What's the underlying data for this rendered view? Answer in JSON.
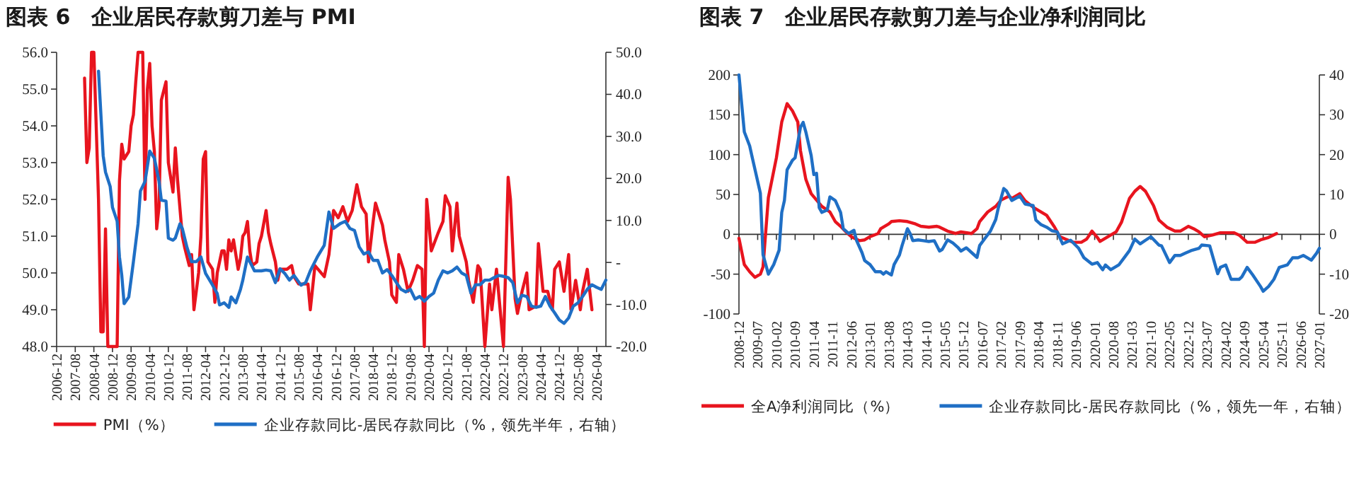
{
  "chart_data": [
    {
      "type": "line",
      "title": "图表 6　企业居民存款剪刀差与 PMI",
      "legend": "bottom",
      "xlim": [
        "2006-12",
        "2026-08"
      ],
      "xticks": [
        "2006-12",
        "2007-08",
        "2008-04",
        "2008-12",
        "2009-08",
        "2010-04",
        "2010-12",
        "2011-08",
        "2012-04",
        "2012-12",
        "2013-08",
        "2014-04",
        "2014-12",
        "2015-08",
        "2016-04",
        "2016-12",
        "2017-08",
        "2018-04",
        "2018-12",
        "2019-08",
        "2020-04",
        "2020-12",
        "2021-08",
        "2022-04",
        "2022-12",
        "2023-08",
        "2024-04",
        "2024-12",
        "2025-08",
        "2026-04"
      ],
      "ylim": [
        48,
        56
      ],
      "yticks": [
        {
          "value": 48,
          "label": "48.0"
        },
        {
          "value": 49,
          "label": "49.0"
        },
        {
          "value": 50,
          "label": "50.0"
        },
        {
          "value": 51,
          "label": "51.0"
        },
        {
          "value": 52,
          "label": "52.0"
        },
        {
          "value": 53,
          "label": "53.0"
        },
        {
          "value": 54,
          "label": "54.0"
        },
        {
          "value": 55,
          "label": "55.0"
        },
        {
          "value": 56,
          "label": "56.0"
        }
      ],
      "y2lim": [
        -20,
        50
      ],
      "y2ticks": [
        {
          "value": -20,
          "label": "-20.0"
        },
        {
          "value": -10,
          "label": "-10.0"
        },
        {
          "value": 0,
          "label": "-"
        },
        {
          "value": 10,
          "label": "10.0"
        },
        {
          "value": 20,
          "label": "20.0"
        },
        {
          "value": 30,
          "label": "30.0"
        },
        {
          "value": 40,
          "label": "40.0"
        },
        {
          "value": 50,
          "label": "50.0"
        }
      ],
      "series": [
        {
          "name": "PMI（%）",
          "color": "#e8141e",
          "x": [
            "2007-12",
            "2008-01",
            "2008-02",
            "2008-03",
            "2008-04",
            "2008-05",
            "2008-06",
            "2008-07",
            "2008-08",
            "2008-09",
            "2008-10",
            "2009-02",
            "2009-03",
            "2009-04",
            "2009-05",
            "2009-07",
            "2009-08",
            "2009-09",
            "2009-10",
            "2009-11",
            "2010-01",
            "2010-02",
            "2010-03",
            "2010-04",
            "2010-05",
            "2010-06",
            "2010-07",
            "2010-08",
            "2010-09",
            "2010-11",
            "2010-12",
            "2011-02",
            "2011-03",
            "2011-04",
            "2011-06",
            "2011-07",
            "2011-09",
            "2011-10",
            "2011-11",
            "2012-01",
            "2012-02",
            "2012-03",
            "2012-04",
            "2012-05",
            "2012-07",
            "2012-08",
            "2012-09",
            "2012-11",
            "2012-12",
            "2013-01",
            "2013-02",
            "2013-03",
            "2013-04",
            "2013-06",
            "2013-07",
            "2013-08",
            "2013-09",
            "2013-10",
            "2013-11",
            "2013-12",
            "2014-02",
            "2014-03",
            "2014-04",
            "2014-06",
            "2014-07",
            "2014-08",
            "2014-10",
            "2014-11",
            "2014-12",
            "2015-03",
            "2015-05",
            "2015-06",
            "2015-08",
            "2015-12",
            "2016-01",
            "2016-03",
            "2016-07",
            "2016-09",
            "2016-11",
            "2017-01",
            "2017-03",
            "2017-05",
            "2017-07",
            "2017-09",
            "2017-11",
            "2018-01",
            "2018-02",
            "2018-04",
            "2018-05",
            "2018-08",
            "2018-09",
            "2018-11",
            "2018-12",
            "2019-02",
            "2019-03",
            "2019-05",
            "2019-07",
            "2019-09",
            "2019-11",
            "2020-01",
            "2020-02",
            "2020-03",
            "2020-05",
            "2020-08",
            "2020-10",
            "2020-11",
            "2021-01",
            "2021-02",
            "2021-04",
            "2021-05",
            "2021-08",
            "2021-09",
            "2021-11",
            "2022-01",
            "2022-02",
            "2022-04",
            "2022-06",
            "2022-07",
            "2022-09",
            "2022-10",
            "2022-12",
            "2023-02",
            "2023-03",
            "2023-05",
            "2023-06",
            "2023-08",
            "2023-10",
            "2023-11",
            "2024-02",
            "2024-03",
            "2024-05",
            "2024-07",
            "2024-09",
            "2024-10",
            "2024-12",
            "2025-02",
            "2025-04",
            "2025-05",
            "2025-07",
            "2025-09",
            "2025-10",
            "2025-12",
            "2026-02"
          ],
          "values": [
            55.3,
            53.0,
            53.4,
            56.0,
            56.0,
            54.0,
            52.0,
            48.4,
            48.4,
            51.2,
            48.0,
            48.0,
            52.5,
            53.5,
            53.1,
            53.3,
            54.0,
            54.3,
            55.2,
            56.0,
            56.0,
            52.0,
            55.0,
            55.7,
            54.0,
            53.3,
            51.2,
            51.8,
            54.7,
            55.2,
            53.0,
            52.2,
            53.4,
            52.5,
            51.0,
            50.7,
            50.2,
            50.5,
            49.0,
            50.0,
            51.0,
            53.1,
            53.3,
            50.3,
            50.1,
            49.2,
            50.0,
            50.6,
            50.6,
            50.1,
            50.9,
            50.6,
            50.9,
            50.1,
            50.4,
            51.0,
            51.1,
            51.4,
            50.6,
            50.2,
            50.3,
            50.8,
            51.0,
            51.7,
            51.1,
            50.8,
            50.3,
            49.8,
            50.1,
            50.1,
            50.2,
            49.9,
            49.7,
            49.7,
            49.0,
            50.2,
            49.9,
            50.5,
            51.7,
            51.5,
            51.8,
            51.4,
            51.7,
            52.4,
            51.8,
            51.6,
            50.3,
            51.4,
            51.9,
            51.3,
            50.9,
            50.3,
            49.4,
            49.2,
            50.5,
            50.1,
            49.5,
            49.8,
            50.2,
            50.1,
            48.0,
            52.0,
            50.6,
            51.1,
            51.4,
            52.1,
            51.8,
            50.6,
            51.9,
            51.0,
            50.3,
            49.8,
            49.2,
            50.2,
            50.1,
            48.0,
            49.7,
            49.0,
            50.1,
            49.4,
            48.0,
            52.6,
            52.0,
            49.3,
            48.9,
            49.5,
            50.0,
            49.0,
            49.1,
            50.8,
            49.5,
            49.5,
            49.0,
            50.1,
            50.3,
            49.5,
            50.5,
            49.0,
            49.8,
            49.0,
            49.5,
            50.1,
            49.0
          ]
        },
        {
          "name": "企业存款同比-居民存款同比（%，领先半年，右轴）",
          "color": "#1f6fc5",
          "axis": "y2",
          "x": [
            "2008-06",
            "2008-08",
            "2008-09",
            "2008-11",
            "2008-12",
            "2009-02",
            "2009-03",
            "2009-04",
            "2009-05",
            "2009-07",
            "2009-09",
            "2009-11",
            "2009-12",
            "2010-02",
            "2010-04",
            "2010-06",
            "2010-08",
            "2010-09",
            "2010-11",
            "2010-12",
            "2011-02",
            "2011-03",
            "2011-05",
            "2011-06",
            "2011-08",
            "2011-10",
            "2011-12",
            "2012-02",
            "2012-04",
            "2012-07",
            "2012-09",
            "2012-10",
            "2012-12",
            "2013-02",
            "2013-03",
            "2013-05",
            "2013-07",
            "2013-08",
            "2013-10",
            "2013-12",
            "2014-01",
            "2014-04",
            "2014-06",
            "2014-08",
            "2014-10",
            "2014-12",
            "2015-02",
            "2015-04",
            "2015-06",
            "2015-09",
            "2015-11",
            "2016-01",
            "2016-04",
            "2016-07",
            "2016-09",
            "2016-11",
            "2017-02",
            "2017-04",
            "2017-06",
            "2017-08",
            "2017-10",
            "2017-12",
            "2018-02",
            "2018-04",
            "2018-06",
            "2018-08",
            "2018-10",
            "2018-12",
            "2019-02",
            "2019-04",
            "2019-06",
            "2019-08",
            "2019-10",
            "2019-12",
            "2020-02",
            "2020-04",
            "2020-06",
            "2020-08",
            "2020-10",
            "2020-12",
            "2021-02",
            "2021-04",
            "2021-06",
            "2021-08",
            "2021-10",
            "2021-12",
            "2022-02",
            "2022-04",
            "2022-06",
            "2022-08",
            "2022-10",
            "2022-12",
            "2023-02",
            "2023-04",
            "2023-06",
            "2023-08",
            "2023-10",
            "2023-12",
            "2024-02",
            "2024-04",
            "2024-06",
            "2024-08",
            "2024-10",
            "2024-12",
            "2025-02",
            "2025-04",
            "2025-06",
            "2025-08",
            "2025-10",
            "2025-12",
            "2026-02",
            "2026-04",
            "2026-06",
            "2026-08"
          ],
          "values": [
            45.5,
            25.4,
            21.5,
            18.1,
            13.1,
            9.8,
            1.3,
            -3.1,
            -9.8,
            -8.2,
            0.2,
            9.2,
            17.0,
            19.3,
            26.5,
            24.8,
            19.3,
            14.8,
            14.6,
            5.8,
            5.3,
            5.8,
            9.2,
            8.1,
            3.6,
            0.2,
            0.2,
            1.3,
            -2.6,
            -5.4,
            -7.4,
            -10.1,
            -9.6,
            -10.7,
            -8.2,
            -9.6,
            -6.4,
            -4.2,
            1.3,
            -0.9,
            -2.0,
            -2.0,
            -1.8,
            -2.0,
            -4.8,
            -1.5,
            -2.6,
            -4.2,
            -3.1,
            -5.4,
            -4.8,
            -2.0,
            1.3,
            4.1,
            12.0,
            8.1,
            9.3,
            9.8,
            8.1,
            7.6,
            3.7,
            2.0,
            2.5,
            0.5,
            0.5,
            -2.5,
            -1.7,
            -3.1,
            -4.8,
            -6.4,
            -7.0,
            -6.4,
            -8.7,
            -8.1,
            -9.2,
            -8.1,
            -7.3,
            -4.2,
            -2.0,
            -2.5,
            -2.0,
            -1.1,
            -2.5,
            -3.1,
            -7.3,
            -5.3,
            -5.3,
            -4.2,
            -4.2,
            -3.6,
            -3.1,
            -3.3,
            -3.6,
            -4.8,
            -9.6,
            -7.8,
            -8.1,
            -10.4,
            -10.7,
            -10.4,
            -8.1,
            -10.4,
            -12.0,
            -13.7,
            -14.5,
            -13.2,
            -10.4,
            -9.6,
            -8.1,
            -6.4,
            -5.3,
            -5.9,
            -6.4,
            -4.2
          ]
        }
      ]
    },
    {
      "type": "line",
      "title": "图表 7　企业居民存款剪刀差与企业净利润同比",
      "legend": "bottom",
      "xlim": [
        "2008-12",
        "2027-01"
      ],
      "xticks": [
        "2008-12",
        "2009-07",
        "2010-02",
        "2010-09",
        "2011-04",
        "2011-11",
        "2012-06",
        "2013-01",
        "2013-08",
        "2014-03",
        "2014-10",
        "2015-05",
        "2015-12",
        "2016-07",
        "2017-02",
        "2017-09",
        "2018-04",
        "2018-11",
        "2019-06",
        "2020-01",
        "2020-08",
        "2021-03",
        "2021-10",
        "2022-05",
        "2022-12",
        "2023-07",
        "2024-02",
        "2024-09",
        "2025-04",
        "2025-11",
        "2026-06",
        "2027-01"
      ],
      "ylim": [
        -100,
        200
      ],
      "yticks": [
        -100,
        -50,
        0,
        50,
        100,
        150,
        200
      ],
      "y2lim": [
        -20,
        40
      ],
      "y2ticks": [
        -20,
        -10,
        0,
        10,
        20,
        30,
        40
      ],
      "series": [
        {
          "name": "全A净利润同比（%）",
          "color": "#e8141e",
          "x": [
            "2008-12",
            "2009-02",
            "2009-04",
            "2009-06",
            "2009-08",
            "2009-09",
            "2009-11",
            "2010-02",
            "2010-04",
            "2010-06",
            "2010-08",
            "2010-10",
            "2010-11",
            "2011-01",
            "2011-03",
            "2011-05",
            "2011-07",
            "2011-10",
            "2011-12",
            "2012-02",
            "2012-04",
            "2012-06",
            "2012-09",
            "2012-11",
            "2013-01",
            "2013-04",
            "2013-05",
            "2013-08",
            "2013-09",
            "2013-12",
            "2014-03",
            "2014-06",
            "2014-08",
            "2014-11",
            "2015-02",
            "2015-03",
            "2015-06",
            "2015-09",
            "2015-11",
            "2016-03",
            "2016-05",
            "2016-06",
            "2016-09",
            "2016-12",
            "2017-02",
            "2017-05",
            "2017-06",
            "2017-09",
            "2017-11",
            "2018-02",
            "2018-04",
            "2018-07",
            "2018-10",
            "2018-12",
            "2019-02",
            "2019-05",
            "2019-08",
            "2019-10",
            "2019-12",
            "2020-02",
            "2020-03",
            "2020-06",
            "2020-09",
            "2020-11",
            "2021-02",
            "2021-04",
            "2021-06",
            "2021-08",
            "2021-11",
            "2022-01",
            "2022-04",
            "2022-07",
            "2022-09",
            "2022-12",
            "2023-02",
            "2023-04",
            "2023-06",
            "2023-09",
            "2023-12",
            "2024-02",
            "2024-05",
            "2024-07",
            "2024-10",
            "2025-01",
            "2025-03",
            "2025-06",
            "2025-09"
          ],
          "values": [
            -5,
            -38,
            -47,
            -54,
            -50,
            -41,
            46,
            96,
            141,
            164,
            155,
            141,
            105,
            69,
            51,
            43,
            35,
            28,
            16,
            10,
            3,
            -3,
            -8,
            -7,
            -3,
            1,
            7,
            13,
            16,
            17,
            16,
            13,
            10,
            9,
            10,
            9,
            4,
            1,
            3,
            1,
            7,
            16,
            28,
            35,
            43,
            48,
            45,
            51,
            42,
            34,
            30,
            24,
            9,
            -3,
            -6,
            -10,
            -10,
            -6,
            4,
            -4,
            -9,
            -3,
            3,
            15,
            45,
            54,
            60,
            54,
            36,
            18,
            9,
            4,
            4,
            10,
            7,
            3,
            -3,
            -1,
            2,
            2,
            2,
            -1,
            -10,
            -10,
            -7,
            -4,
            1
          ]
        },
        {
          "name": "企业存款同比-居民存款同比（%，领先一年，右轴）",
          "color": "#1f6fc5",
          "axis": "y2",
          "x": [
            "2008-12",
            "2009-02",
            "2009-04",
            "2009-05",
            "2009-07",
            "2009-08",
            "2009-09",
            "2009-11",
            "2010-01",
            "2010-03",
            "2010-04",
            "2010-05",
            "2010-06",
            "2010-08",
            "2010-09",
            "2010-11",
            "2010-12",
            "2011-01",
            "2011-03",
            "2011-04",
            "2011-05",
            "2011-06",
            "2011-07",
            "2011-09",
            "2011-10",
            "2011-12",
            "2012-02",
            "2012-03",
            "2012-05",
            "2012-07",
            "2012-08",
            "2012-10",
            "2012-11",
            "2013-01",
            "2013-03",
            "2013-05",
            "2013-06",
            "2013-07",
            "2013-09",
            "2013-10",
            "2013-12",
            "2014-01",
            "2014-03",
            "2014-04",
            "2014-05",
            "2014-07",
            "2014-09",
            "2014-11",
            "2015-01",
            "2015-03",
            "2015-04",
            "2015-06",
            "2015-08",
            "2015-10",
            "2015-11",
            "2016-01",
            "2016-03",
            "2016-05",
            "2016-06",
            "2016-08",
            "2016-10",
            "2016-12",
            "2017-01",
            "2017-03",
            "2017-04",
            "2017-06",
            "2017-09",
            "2017-11",
            "2018-02",
            "2018-03",
            "2018-05",
            "2018-07",
            "2018-09",
            "2018-11",
            "2019-01",
            "2019-04",
            "2019-07",
            "2019-09",
            "2019-12",
            "2020-02",
            "2020-04",
            "2020-05",
            "2020-07",
            "2020-10",
            "2020-12",
            "2021-02",
            "2021-04",
            "2021-06",
            "2021-08",
            "2021-10",
            "2022-01",
            "2022-02",
            "2022-05",
            "2022-07",
            "2022-09",
            "2022-11",
            "2023-01",
            "2023-04",
            "2023-05",
            "2023-08",
            "2023-11",
            "2023-12",
            "2024-02",
            "2024-04",
            "2024-07",
            "2024-08",
            "2024-10",
            "2024-12",
            "2025-03",
            "2025-04",
            "2025-06",
            "2025-08",
            "2025-10",
            "2026-01",
            "2026-03",
            "2026-05",
            "2026-07",
            "2026-10",
            "2026-12",
            "2027-01"
          ],
          "values": [
            40,
            25.7,
            22.2,
            19.2,
            13.3,
            10.3,
            -5.1,
            -10.0,
            -7.6,
            -4.0,
            5.5,
            8.5,
            16.2,
            18.6,
            19.2,
            26.9,
            28.1,
            25.7,
            19.8,
            15.0,
            15.3,
            6.7,
            5.5,
            6.1,
            9.4,
            8.5,
            5.5,
            1.4,
            0.2,
            1.0,
            -1.6,
            -4.6,
            -6.6,
            -7.6,
            -9.4,
            -9.4,
            -10.0,
            -9.4,
            -10.2,
            -7.6,
            -5.2,
            -2.8,
            1.4,
            0.2,
            -1.6,
            -1.4,
            -1.6,
            -1.8,
            -1.6,
            -4.2,
            -3.8,
            -1.4,
            -2.2,
            -3.4,
            -4.2,
            -3.4,
            -4.6,
            -5.8,
            -2.8,
            -1.0,
            0.8,
            3.7,
            6.7,
            11.5,
            10.9,
            8.5,
            9.6,
            7.6,
            7.2,
            3.6,
            2.4,
            1.8,
            0.9,
            0.6,
            -2.4,
            -1.5,
            -3.5,
            -5.9,
            -7.5,
            -7.1,
            -8.9,
            -7.7,
            -8.9,
            -7.7,
            -5.9,
            -4.1,
            -1.2,
            -2.4,
            -1.5,
            -0.6,
            -2.7,
            -2.9,
            -7.1,
            -5.3,
            -5.3,
            -4.7,
            -4.1,
            -3.5,
            -2.7,
            -2.9,
            -9.9,
            -8.3,
            -7.7,
            -11.3,
            -11.3,
            -10.7,
            -8.3,
            -10.1,
            -13.1,
            -14.3,
            -13.1,
            -11.3,
            -8.3,
            -7.7,
            -5.9,
            -5.9,
            -5.3,
            -6.5,
            -4.7,
            -3.5
          ]
        }
      ]
    }
  ]
}
